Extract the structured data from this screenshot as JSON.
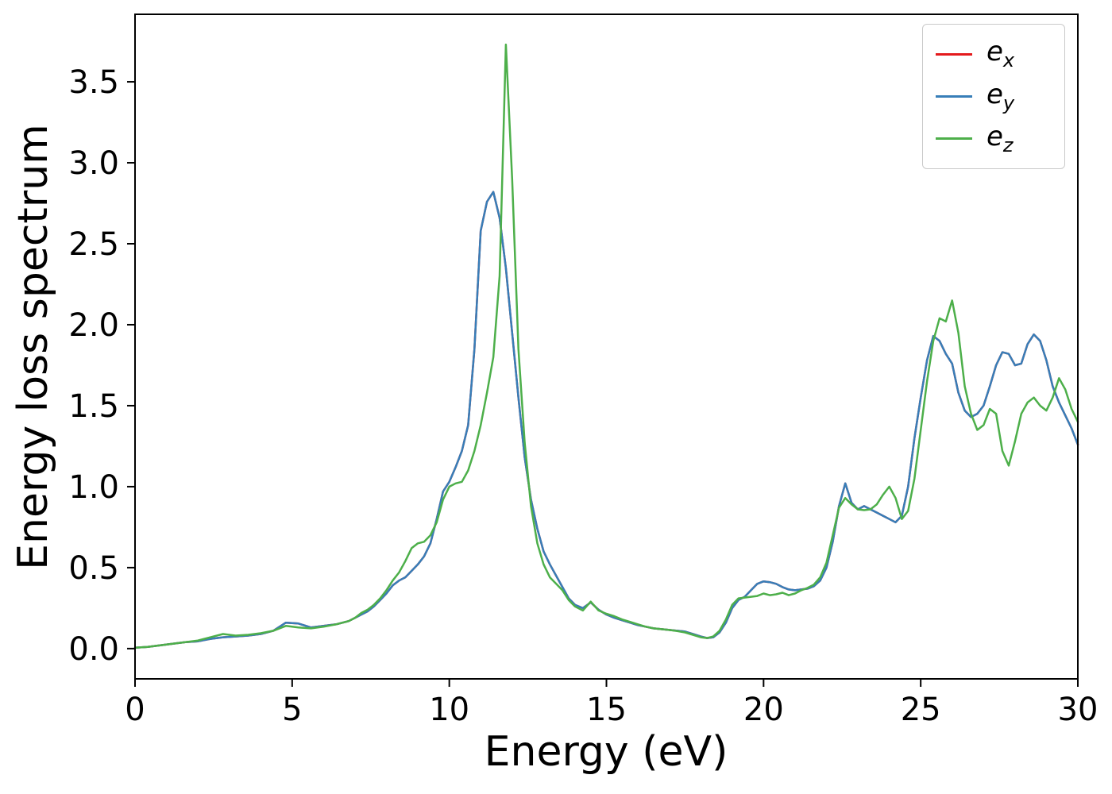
{
  "figure": {
    "title": ""
  },
  "chart_data": {
    "type": "line",
    "title": "",
    "xlabel": "Energy (eV)",
    "ylabel": "Energy loss spectrum",
    "xlim": [
      0,
      30
    ],
    "ylim": [
      -0.187,
      3.917
    ],
    "grid": false,
    "legend_location": "upper right",
    "xticks": {
      "values": [
        0,
        5,
        10,
        15,
        20,
        25,
        30
      ],
      "labels": [
        "0",
        "5",
        "10",
        "15",
        "20",
        "25",
        "30"
      ]
    },
    "yticks": {
      "values": [
        0.0,
        0.5,
        1.0,
        1.5,
        2.0,
        2.5,
        3.0,
        3.5
      ],
      "labels": [
        "0.0",
        "0.5",
        "1.0",
        "1.5",
        "2.0",
        "2.5",
        "3.0",
        "3.5"
      ]
    },
    "x": [
      0,
      0.4,
      0.8,
      1.2,
      1.6,
      2,
      2.4,
      2.8,
      3.2,
      3.6,
      4,
      4.4,
      4.8,
      5.2,
      5.6,
      6,
      6.4,
      6.8,
      7,
      7.2,
      7.4,
      7.6,
      7.8,
      8,
      8.2,
      8.4,
      8.6,
      8.8,
      9,
      9.2,
      9.4,
      9.6,
      9.8,
      10,
      10.2,
      10.4,
      10.6,
      10.8,
      11,
      11.2,
      11.4,
      11.6,
      11.8,
      12,
      12.2,
      12.4,
      12.6,
      12.8,
      13,
      13.2,
      13.4,
      13.6,
      13.8,
      14,
      14.25,
      14.5,
      14.75,
      15,
      15.25,
      15.5,
      15.75,
      16,
      16.25,
      16.5,
      16.75,
      17,
      17.25,
      17.5,
      17.75,
      18,
      18.2,
      18.4,
      18.6,
      18.8,
      19,
      19.2,
      19.4,
      19.6,
      19.8,
      20,
      20.2,
      20.4,
      20.6,
      20.8,
      21,
      21.2,
      21.4,
      21.6,
      21.8,
      22,
      22.2,
      22.4,
      22.6,
      22.8,
      23,
      23.2,
      23.4,
      23.6,
      23.8,
      24,
      24.2,
      24.4,
      24.6,
      24.8,
      25,
      25.2,
      25.4,
      25.6,
      25.8,
      26,
      26.2,
      26.4,
      26.6,
      26.8,
      27,
      27.2,
      27.4,
      27.6,
      27.8,
      28,
      28.2,
      28.4,
      28.6,
      28.8,
      29,
      29.2,
      29.4,
      29.6,
      29.8,
      30
    ],
    "series": [
      {
        "name": "ex",
        "label_base": "e",
        "label_sub": "x",
        "color": "#e41a1c",
        "values_same_as": "ey"
      },
      {
        "name": "ey",
        "label_base": "e",
        "label_sub": "y",
        "color": "#377eb8",
        "values": [
          0.005,
          0.01,
          0.02,
          0.03,
          0.04,
          0.045,
          0.06,
          0.07,
          0.075,
          0.08,
          0.09,
          0.11,
          0.16,
          0.155,
          0.13,
          0.14,
          0.15,
          0.17,
          0.19,
          0.21,
          0.23,
          0.26,
          0.3,
          0.34,
          0.39,
          0.42,
          0.44,
          0.48,
          0.52,
          0.57,
          0.65,
          0.8,
          0.97,
          1.03,
          1.12,
          1.22,
          1.38,
          1.85,
          2.58,
          2.76,
          2.82,
          2.66,
          2.35,
          1.95,
          1.55,
          1.18,
          0.92,
          0.74,
          0.6,
          0.52,
          0.45,
          0.38,
          0.31,
          0.27,
          0.25,
          0.285,
          0.24,
          0.21,
          0.19,
          0.175,
          0.16,
          0.145,
          0.135,
          0.125,
          0.12,
          0.115,
          0.11,
          0.105,
          0.09,
          0.075,
          0.065,
          0.07,
          0.1,
          0.16,
          0.25,
          0.3,
          0.32,
          0.36,
          0.4,
          0.415,
          0.41,
          0.4,
          0.38,
          0.365,
          0.36,
          0.365,
          0.37,
          0.385,
          0.42,
          0.5,
          0.66,
          0.88,
          1.02,
          0.9,
          0.86,
          0.88,
          0.86,
          0.84,
          0.82,
          0.8,
          0.78,
          0.82,
          1.0,
          1.3,
          1.55,
          1.78,
          1.93,
          1.9,
          1.82,
          1.76,
          1.58,
          1.47,
          1.43,
          1.45,
          1.5,
          1.62,
          1.75,
          1.83,
          1.82,
          1.75,
          1.76,
          1.88,
          1.94,
          1.9,
          1.78,
          1.62,
          1.52,
          1.44,
          1.36,
          1.26
        ]
      },
      {
        "name": "ez",
        "label_base": "e",
        "label_sub": "z",
        "color": "#4daf4a",
        "values": [
          0.005,
          0.01,
          0.02,
          0.03,
          0.04,
          0.05,
          0.07,
          0.09,
          0.08,
          0.085,
          0.095,
          0.11,
          0.14,
          0.13,
          0.125,
          0.135,
          0.15,
          0.17,
          0.19,
          0.22,
          0.24,
          0.27,
          0.31,
          0.36,
          0.42,
          0.47,
          0.54,
          0.62,
          0.65,
          0.66,
          0.7,
          0.78,
          0.92,
          1.0,
          1.02,
          1.03,
          1.1,
          1.22,
          1.38,
          1.58,
          1.8,
          2.3,
          3.73,
          2.9,
          1.85,
          1.27,
          0.88,
          0.65,
          0.52,
          0.44,
          0.4,
          0.36,
          0.3,
          0.26,
          0.235,
          0.29,
          0.235,
          0.215,
          0.2,
          0.18,
          0.165,
          0.15,
          0.135,
          0.125,
          0.12,
          0.115,
          0.108,
          0.1,
          0.085,
          0.07,
          0.065,
          0.075,
          0.11,
          0.18,
          0.27,
          0.31,
          0.315,
          0.32,
          0.325,
          0.34,
          0.33,
          0.335,
          0.345,
          0.33,
          0.34,
          0.36,
          0.375,
          0.395,
          0.44,
          0.53,
          0.7,
          0.87,
          0.93,
          0.89,
          0.86,
          0.855,
          0.86,
          0.89,
          0.95,
          1.0,
          0.93,
          0.8,
          0.85,
          1.05,
          1.35,
          1.65,
          1.9,
          2.04,
          2.02,
          2.15,
          1.95,
          1.62,
          1.45,
          1.35,
          1.38,
          1.48,
          1.45,
          1.22,
          1.13,
          1.28,
          1.45,
          1.52,
          1.55,
          1.5,
          1.47,
          1.55,
          1.67,
          1.6,
          1.48,
          1.4
        ]
      }
    ]
  }
}
